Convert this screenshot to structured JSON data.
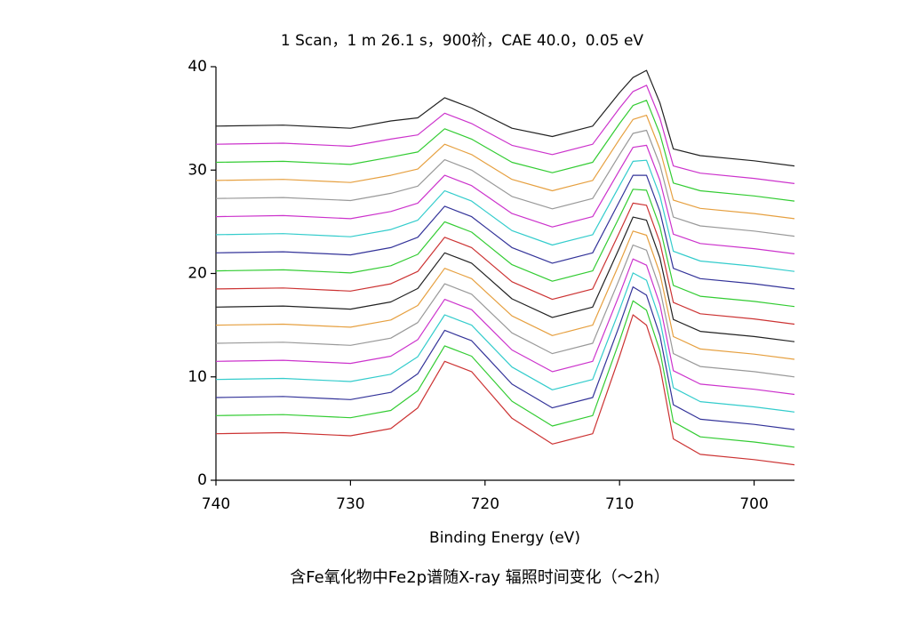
{
  "chart_data": {
    "type": "line",
    "title": "1 Scan，1 m 26.1 s，900祄，CAE 40.0，0.05 eV",
    "x_label": "Binding Energy (eV)",
    "caption": "含Fe氧化物中Fe2p谱随X-ray 辐照时间变化（～2h）",
    "x": [
      740,
      735,
      730,
      727,
      725,
      723,
      722,
      721,
      720,
      718,
      715,
      712,
      710,
      709,
      708,
      707,
      706,
      704,
      700,
      697
    ],
    "xlim": [
      740,
      697
    ],
    "xticks": [
      740,
      730,
      720,
      710,
      700
    ],
    "ylim": [
      0,
      40
    ],
    "yticks": [
      0,
      10,
      20,
      30,
      40
    ],
    "series": [
      {
        "color": "#cc3333",
        "values": [
          4.5,
          4.6,
          4.3,
          5,
          7,
          11.5,
          11,
          10.5,
          9,
          6,
          3.5,
          4.5,
          12,
          16,
          15,
          11,
          4,
          2.5,
          2,
          1.5
        ]
      },
      {
        "color": "#33cc33",
        "values": [
          6.25,
          6.35,
          6.05,
          6.75,
          8.65,
          13,
          12.5,
          12,
          10.55,
          7.65,
          5.25,
          6.25,
          13.5,
          17.35,
          16.45,
          12.5,
          5.65,
          4.2,
          3.7,
          3.2
        ]
      },
      {
        "color": "#333399",
        "values": [
          8,
          8.1,
          7.8,
          8.5,
          10.3,
          14.5,
          14,
          13.5,
          12.1,
          9.3,
          7,
          8,
          15,
          18.7,
          17.9,
          14,
          7.3,
          5.9,
          5.4,
          4.9
        ]
      },
      {
        "color": "#33cccc",
        "values": [
          9.75,
          9.85,
          9.55,
          10.25,
          11.95,
          16,
          15.5,
          15,
          13.65,
          10.95,
          8.75,
          9.75,
          16.5,
          20.05,
          19.35,
          15.5,
          8.95,
          7.6,
          7.1,
          6.6
        ]
      },
      {
        "color": "#cc33cc",
        "values": [
          11.5,
          11.6,
          11.3,
          12,
          13.6,
          17.5,
          17,
          16.5,
          15.2,
          12.6,
          10.5,
          11.5,
          18,
          21.4,
          20.8,
          17,
          10.6,
          9.3,
          8.8,
          8.3
        ]
      },
      {
        "color": "#999999",
        "values": [
          13.25,
          13.35,
          13.05,
          13.75,
          15.25,
          19,
          18.5,
          18,
          16.75,
          14.25,
          12.25,
          13.25,
          19.5,
          22.75,
          22.25,
          18.5,
          12.25,
          11,
          10.5,
          10
        ]
      },
      {
        "color": "#e6a040",
        "values": [
          15,
          15.1,
          14.8,
          15.5,
          16.9,
          20.5,
          20,
          19.5,
          18.3,
          15.9,
          14,
          15,
          21,
          24.1,
          23.7,
          20,
          13.9,
          12.7,
          12.2,
          11.7
        ]
      },
      {
        "color": "#222222",
        "values": [
          16.75,
          16.85,
          16.55,
          17.25,
          18.55,
          22,
          21.5,
          21,
          19.85,
          17.55,
          15.75,
          16.75,
          22.5,
          25.45,
          25.15,
          21.5,
          15.55,
          14.4,
          13.9,
          13.4
        ]
      },
      {
        "color": "#cc3333",
        "values": [
          18.5,
          18.6,
          18.3,
          19,
          20.2,
          23.5,
          23,
          22.5,
          21.4,
          19.2,
          17.5,
          18.5,
          24,
          26.8,
          26.6,
          23,
          17.2,
          16.1,
          15.6,
          15.1
        ]
      },
      {
        "color": "#33cc33",
        "values": [
          20.25,
          20.35,
          20.05,
          20.75,
          21.85,
          25,
          24.5,
          24,
          22.95,
          20.85,
          19.25,
          20.25,
          25.5,
          28.15,
          28.05,
          24.5,
          18.85,
          17.8,
          17.3,
          16.8
        ]
      },
      {
        "color": "#333399",
        "values": [
          22,
          22.1,
          21.8,
          22.5,
          23.5,
          26.5,
          26,
          25.5,
          24.5,
          22.5,
          21,
          22,
          27,
          29.5,
          29.5,
          26,
          20.5,
          19.5,
          19,
          18.5
        ]
      },
      {
        "color": "#33cccc",
        "values": [
          23.75,
          23.85,
          23.55,
          24.25,
          25.15,
          28,
          27.5,
          27,
          26.05,
          24.15,
          22.75,
          23.75,
          28.5,
          30.85,
          30.95,
          27.5,
          22.15,
          21.2,
          20.7,
          20.2
        ]
      },
      {
        "color": "#cc33cc",
        "values": [
          25.5,
          25.6,
          25.3,
          26,
          26.8,
          29.5,
          29,
          28.5,
          27.6,
          25.8,
          24.5,
          25.5,
          30,
          32.2,
          32.4,
          29,
          23.8,
          22.9,
          22.4,
          21.9
        ]
      },
      {
        "color": "#999999",
        "values": [
          27.25,
          27.35,
          27.05,
          27.75,
          28.45,
          31,
          30.5,
          30,
          29.15,
          27.45,
          26.25,
          27.25,
          31.5,
          33.55,
          33.85,
          30.5,
          25.45,
          24.6,
          24.1,
          23.6
        ]
      },
      {
        "color": "#e6a040",
        "values": [
          29,
          29.1,
          28.8,
          29.5,
          30.1,
          32.5,
          32,
          31.5,
          30.7,
          29.1,
          28,
          29,
          33,
          34.9,
          35.3,
          32,
          27.1,
          26.3,
          25.8,
          25.3
        ]
      },
      {
        "color": "#33cc33",
        "values": [
          30.75,
          30.85,
          30.55,
          31.25,
          31.75,
          34,
          33.5,
          33,
          32.25,
          30.75,
          29.75,
          30.75,
          34.5,
          36.25,
          36.75,
          33.5,
          28.75,
          28,
          27.5,
          27
        ]
      },
      {
        "color": "#cc33cc",
        "values": [
          32.5,
          32.6,
          32.3,
          33,
          33.4,
          35.5,
          35,
          34.5,
          33.8,
          32.4,
          31.5,
          32.5,
          36,
          37.6,
          38.2,
          35,
          30.4,
          29.7,
          29.2,
          28.7
        ]
      },
      {
        "color": "#222222",
        "values": [
          34.25,
          34.35,
          34.05,
          34.75,
          35.05,
          37,
          36.5,
          36,
          35.35,
          34.05,
          33.25,
          34.25,
          37.5,
          38.95,
          39.65,
          36.5,
          32.05,
          31.4,
          30.9,
          30.4
        ]
      }
    ]
  }
}
